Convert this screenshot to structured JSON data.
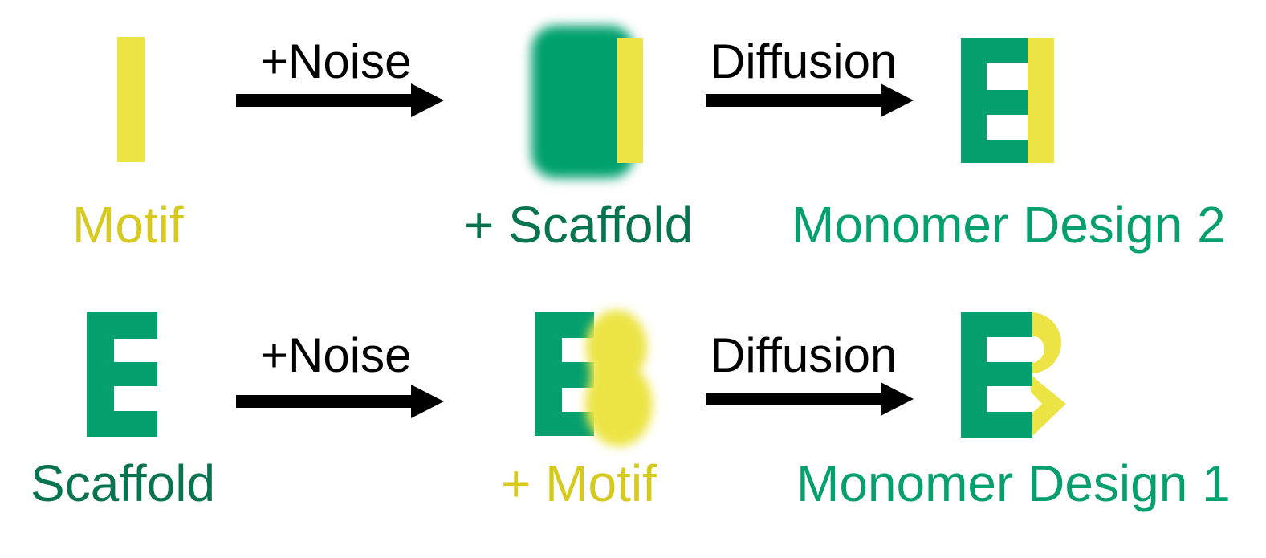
{
  "colors": {
    "motif": "#ece444",
    "motif_text": "#d6c91f",
    "scaffold": "#05a06e",
    "scaffold_dark": "#08734f",
    "design_text": "#05a06e",
    "arrow": "#000000"
  },
  "row1": {
    "input_label": "Motif",
    "arrow1_label": "+Noise",
    "noised_label": "+ Scaffold",
    "arrow2_label": "Diffusion",
    "output_label": "Monomer Design 2"
  },
  "row2": {
    "input_label": "Scaffold",
    "arrow1_label": "+Noise",
    "noised_label": "+ Motif",
    "arrow2_label": "Diffusion",
    "output_label": "Monomer Design 1"
  }
}
